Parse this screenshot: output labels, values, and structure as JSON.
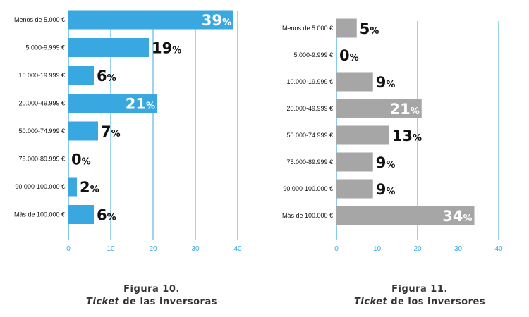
{
  "chart_data": [
    {
      "type": "bar",
      "orientation": "horizontal",
      "categories": [
        "Menos de 5.000 €",
        "5.000-9.999 €",
        "10.000-19.999 €",
        "20.000-49.999 €",
        "50.000-74.999 €",
        "75.000-89.999 €",
        "90.000-100.000 €",
        "Más de 100.000 €"
      ],
      "values": [
        39,
        19,
        6,
        21,
        7,
        0,
        2,
        6
      ],
      "value_suffix": "%",
      "xticks": [
        "0",
        "10",
        "20",
        "30",
        "40"
      ],
      "xlim": [
        0,
        40
      ],
      "grid": true,
      "bar_color": "#3aa8e0",
      "tick_color": "#3aa8e0",
      "caption_line1": "Figura 10.",
      "caption_italic": "Ticket",
      "caption_rest": " de las inversoras"
    },
    {
      "type": "bar",
      "orientation": "horizontal",
      "categories": [
        "Menos de 5.000 €",
        "5.000-9.999 €",
        "10.000-19.999 €",
        "20.000-49.999 €",
        "50.000-74.999 €",
        "75.000-89.999 €",
        "90.000-100.000 €",
        "Más de 100.000 €"
      ],
      "values": [
        5,
        0,
        9,
        21,
        13,
        9,
        9,
        34
      ],
      "value_suffix": "%",
      "xticks": [
        "0",
        "10",
        "20",
        "30",
        "40"
      ],
      "xlim": [
        0,
        40
      ],
      "grid": true,
      "bar_color": "#a6a6a6",
      "tick_color": "#3aa8e0",
      "caption_line1": "Figura 11.",
      "caption_italic": "Ticket",
      "caption_rest": " de los inversores"
    }
  ],
  "colors": {
    "axis": "#3aa8e0",
    "value_text_dark": "#111111",
    "value_text_inside": "#ffffff"
  }
}
